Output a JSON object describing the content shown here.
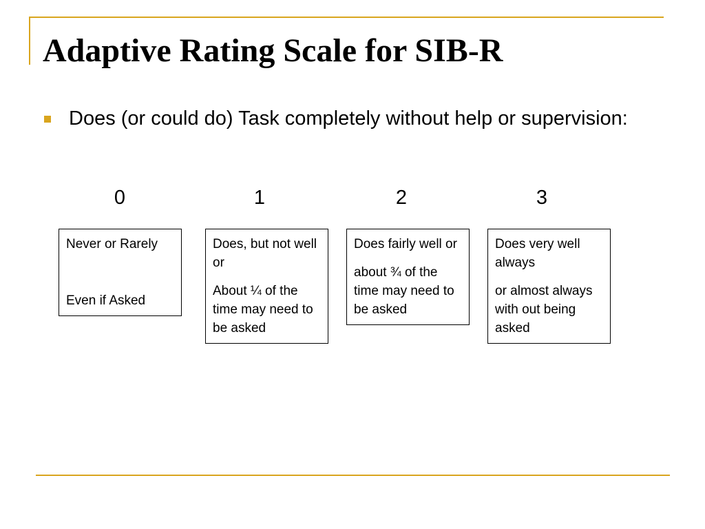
{
  "colors": {
    "accent": "#d9a51e"
  },
  "slide": {
    "title": "Adaptive Rating Scale for SIB-R",
    "bullet_icon": "square-bullet",
    "bullet_text": "Does (or could do) Task completely without help or supervision:"
  },
  "scale": [
    {
      "score": "0",
      "line1": "Never or Rarely",
      "line2": "Even if Asked"
    },
    {
      "score": "1",
      "line1": "Does, but not well or",
      "line2": "About ¼ of the time may need to be asked"
    },
    {
      "score": "2",
      "line1": "Does fairly well or",
      "line2": "about ¾ of the time may need to be asked"
    },
    {
      "score": "3",
      "line1": "Does very well always",
      "line2": "or almost always with out being asked"
    }
  ]
}
